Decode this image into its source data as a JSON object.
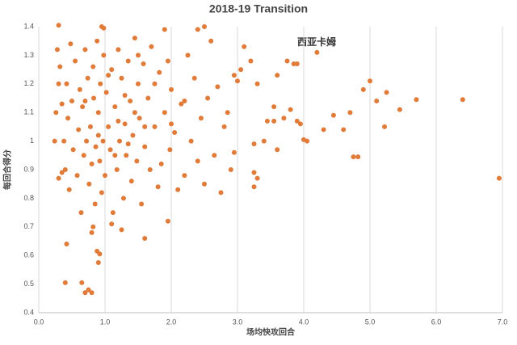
{
  "chart_data": {
    "type": "scatter",
    "title": "2018-19  Transition",
    "xlabel": "场均快攻回合",
    "ylabel": "每回合得分",
    "annotation": "西亚卡姆",
    "color": "#e07b39",
    "xgrid": true,
    "xlim": [
      0,
      7
    ],
    "ylim": [
      0.4,
      1.4
    ],
    "xticks": [
      {
        "value": 0,
        "label": "0.0"
      },
      {
        "value": 1,
        "label": "1.0"
      },
      {
        "value": 2,
        "label": "2.0"
      },
      {
        "value": 3,
        "label": "3.0"
      },
      {
        "value": 4,
        "label": "4.0"
      },
      {
        "value": 5,
        "label": "5.0"
      },
      {
        "value": 6,
        "label": "6.0"
      },
      {
        "value": 7,
        "label": "7.0"
      }
    ],
    "yticks": [
      0.4,
      0.5,
      0.6,
      0.7,
      0.8,
      0.9,
      1,
      1.1,
      1.2,
      1.3,
      1.4
    ],
    "x": [
      0.3,
      0.95,
      0.98,
      1.9,
      2.5,
      2.4,
      0.4,
      0.65,
      0.7,
      0.75,
      0.8,
      0.9,
      0.92,
      0.88,
      0.42,
      0.8,
      0.82,
      1.25,
      1.6,
      1.95,
      1.1,
      6.95,
      6.4,
      5.7,
      5.45,
      5.22,
      5.25,
      5.1,
      5.0,
      4.9,
      4.75,
      4.82,
      4.7,
      4.6,
      4.45,
      4.3,
      4.2,
      4.05,
      4.0,
      3.95,
      3.9,
      3.9,
      3.85,
      3.8,
      3.75,
      3.7,
      3.6,
      3.55,
      3.6,
      3.55,
      3.45,
      3.4,
      3.3,
      3.25,
      3.25,
      3.3,
      3.25,
      3.1,
      3.2,
      3.05,
      3.0,
      2.95,
      2.95,
      2.9,
      2.85,
      2.8,
      2.75,
      2.7,
      2.65,
      2.6,
      2.55,
      2.5,
      2.45,
      2.4,
      2.35,
      2.3,
      2.25,
      2.2,
      2.15,
      2.1,
      2.05,
      2.0,
      1.98,
      1.95,
      1.9,
      1.85,
      1.82,
      1.8,
      1.75,
      1.7,
      1.68,
      1.65,
      1.6,
      1.58,
      1.55,
      1.52,
      1.5,
      1.48,
      1.45,
      1.42,
      1.4,
      1.38,
      1.35,
      1.32,
      1.3,
      1.28,
      1.25,
      1.22,
      1.2,
      1.18,
      1.15,
      1.12,
      1.1,
      1.08,
      1.05,
      1.02,
      1.0,
      0.98,
      0.97,
      0.95,
      0.93,
      0.92,
      0.9,
      0.88,
      0.86,
      0.85,
      0.83,
      0.82,
      0.8,
      0.78,
      0.76,
      0.74,
      0.72,
      0.7,
      0.68,
      0.66,
      0.64,
      0.62,
      0.6,
      0.58,
      0.55,
      0.52,
      0.5,
      0.48,
      0.46,
      0.44,
      0.42,
      0.4,
      0.38,
      0.35,
      0.32,
      0.3,
      0.28,
      0.26,
      0.24,
      0.3,
      0.35,
      1.3,
      1.45,
      1.05,
      1.15,
      1.6,
      1.75,
      2.2,
      0.9,
      1.2,
      0.7,
      1.5,
      2.0,
      1.35
    ],
    "values": [
      1.405,
      1.4,
      1.395,
      1.39,
      1.4,
      1.39,
      0.505,
      0.505,
      0.47,
      0.48,
      0.47,
      0.575,
      0.605,
      0.615,
      0.64,
      0.68,
      0.7,
      0.69,
      0.66,
      0.72,
      0.71,
      0.87,
      1.145,
      1.145,
      1.11,
      1.05,
      1.17,
      1.14,
      1.21,
      1.18,
      0.945,
      0.945,
      1.1,
      1.04,
      1.09,
      1.04,
      1.31,
      1.0,
      1.005,
      1.06,
      1.07,
      1.27,
      1.27,
      1.11,
      1.28,
      1.08,
      0.97,
      1.07,
      1.23,
      1.12,
      1.07,
      1.0,
      1.2,
      0.99,
      0.89,
      0.87,
      0.84,
      1.33,
      1.28,
      1.25,
      1.21,
      1.23,
      0.96,
      0.9,
      1.1,
      1.05,
      0.82,
      1.19,
      0.95,
      1.35,
      1.15,
      0.85,
      1.08,
      0.93,
      1.22,
      1.0,
      1.3,
      0.88,
      1.13,
      0.83,
      1.03,
      1.18,
      0.97,
      1.28,
      1.1,
      0.92,
      1.24,
      0.84,
      1.05,
      1.33,
      0.9,
      1.15,
      0.98,
      1.27,
      0.78,
      1.08,
      1.2,
      0.93,
      1.36,
      1.02,
      0.86,
      1.14,
      1.28,
      0.95,
      1.06,
      0.8,
      1.22,
      1.0,
      1.32,
      0.9,
      1.12,
      0.75,
      1.25,
      0.97,
      1.05,
      1.17,
      0.88,
      1.3,
      1.0,
      0.82,
      1.2,
      0.93,
      1.1,
      1.35,
      0.98,
      0.78,
      1.15,
      1.26,
      0.92,
      1.05,
      0.85,
      1.22,
      1.0,
      1.32,
      0.95,
      1.12,
      0.75,
      1.18,
      1.04,
      0.88,
      1.28,
      0.97,
      1.14,
      1.34,
      0.83,
      1.08,
      1.2,
      0.9,
      1.0,
      1.13,
      1.26,
      0.87,
      1.32,
      1.1,
      1.0,
      1.2,
      0.89,
      1.16,
      1.1,
      1.23,
      0.95,
      1.05,
      1.2,
      1.14,
      1.02,
      1.07,
      1.14,
      1.3,
      1.06,
      0.99
    ]
  }
}
